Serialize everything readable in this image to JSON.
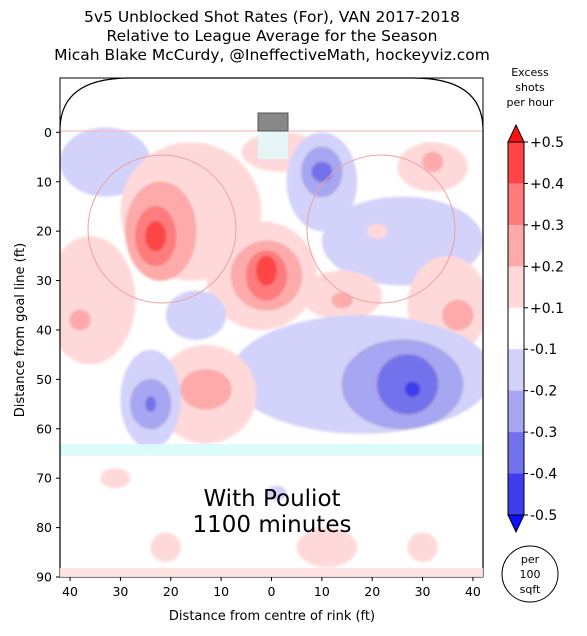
{
  "title": {
    "line1": "5v5 Unblocked Shot Rates (For), VAN 2017-2018",
    "line2": "Relative to League Average for the Season",
    "line3": "Micah Blake McCurdy, @IneffectiveMath, hockeyviz.com"
  },
  "annotation": {
    "line1": "With Pouliot",
    "line2": "1100 minutes"
  },
  "unit_badge": {
    "line1": "per",
    "line2": "100",
    "line3": "sqft"
  },
  "colorbar": {
    "title": [
      "Excess",
      "shots",
      "per hour"
    ],
    "tick_labels": [
      "+0.5",
      "+0.4",
      "+0.3",
      "+0.2",
      "+0.1",
      "-0.1",
      "-0.2",
      "-0.3",
      "-0.4",
      "-0.5"
    ],
    "levels": [
      0.5,
      0.4,
      0.3,
      0.2,
      0.1,
      -0.1,
      -0.2,
      -0.3,
      -0.4,
      -0.5
    ],
    "colors": {
      "pos1": "#ffd9d9",
      "pos2": "#ffaaaa",
      "pos3": "#ff7b7b",
      "pos4": "#ff4545",
      "pos5": "#ff1111",
      "neg1": "#d2d2fa",
      "neg2": "#a6a6f2",
      "neg3": "#7272ec",
      "neg4": "#3e3eee",
      "neg5": "#1010ff"
    }
  },
  "chart_data": {
    "type": "heatmap",
    "xlabel": "Distance from centre of rink (ft)",
    "ylabel": "Distance from goal line (ft)",
    "xlim": [
      42,
      -42
    ],
    "ylim": [
      90,
      -11
    ],
    "x_ticks": [
      40,
      30,
      20,
      10,
      0,
      10,
      20,
      30,
      40
    ],
    "x_tick_values": [
      40,
      30,
      20,
      10,
      0,
      -10,
      -20,
      -30,
      -40
    ],
    "y_ticks": [
      0,
      10,
      20,
      30,
      40,
      50,
      60,
      70,
      80,
      90
    ],
    "regions": [
      {
        "sign": "neg",
        "level": 1,
        "cx": 33,
        "cy": 6,
        "rx": 9,
        "ry": 7
      },
      {
        "sign": "pos",
        "level": 1,
        "cx": 16,
        "cy": 16,
        "rx": 14,
        "ry": 14
      },
      {
        "sign": "pos",
        "level": 2,
        "cx": 22,
        "cy": 20,
        "rx": 7,
        "ry": 10
      },
      {
        "sign": "pos",
        "level": 3,
        "cx": 23,
        "cy": 21,
        "rx": 4,
        "ry": 6
      },
      {
        "sign": "pos",
        "level": 4,
        "cx": 23,
        "cy": 21,
        "rx": 2,
        "ry": 3
      },
      {
        "sign": "pos",
        "level": 1,
        "cx": -2,
        "cy": 4,
        "rx": 8,
        "ry": 4
      },
      {
        "sign": "neg",
        "level": 1,
        "cx": -10,
        "cy": 10,
        "rx": 7,
        "ry": 10
      },
      {
        "sign": "neg",
        "level": 2,
        "cx": -10,
        "cy": 8,
        "rx": 4,
        "ry": 5
      },
      {
        "sign": "neg",
        "level": 3,
        "cx": -10,
        "cy": 8,
        "rx": 2,
        "ry": 2
      },
      {
        "sign": "pos",
        "level": 1,
        "cx": -32,
        "cy": 7,
        "rx": 7,
        "ry": 5
      },
      {
        "sign": "pos",
        "level": 2,
        "cx": -32,
        "cy": 6,
        "rx": 2,
        "ry": 2
      },
      {
        "sign": "neg",
        "level": 1,
        "cx": -26,
        "cy": 22,
        "rx": 16,
        "ry": 9
      },
      {
        "sign": "pos",
        "level": 1,
        "cx": -21,
        "cy": 20,
        "rx": 2,
        "ry": 1.5
      },
      {
        "sign": "pos",
        "level": 1,
        "cx": 2,
        "cy": 29,
        "rx": 11,
        "ry": 11
      },
      {
        "sign": "pos",
        "level": 2,
        "cx": 1,
        "cy": 29,
        "rx": 7,
        "ry": 7
      },
      {
        "sign": "pos",
        "level": 3,
        "cx": 1,
        "cy": 29,
        "rx": 4,
        "ry": 5
      },
      {
        "sign": "pos",
        "level": 4,
        "cx": 1,
        "cy": 28,
        "rx": 2,
        "ry": 3
      },
      {
        "sign": "pos",
        "level": 1,
        "cx": -14,
        "cy": 33,
        "rx": 8,
        "ry": 5
      },
      {
        "sign": "pos",
        "level": 2,
        "cx": -14,
        "cy": 34,
        "rx": 2,
        "ry": 1.5
      },
      {
        "sign": "pos",
        "level": 1,
        "cx": -35,
        "cy": 35,
        "rx": 8,
        "ry": 10
      },
      {
        "sign": "pos",
        "level": 2,
        "cx": -37,
        "cy": 37,
        "rx": 3,
        "ry": 3
      },
      {
        "sign": "pos",
        "level": 1,
        "cx": 36,
        "cy": 34,
        "rx": 9,
        "ry": 13
      },
      {
        "sign": "pos",
        "level": 2,
        "cx": 38,
        "cy": 38,
        "rx": 2,
        "ry": 2
      },
      {
        "sign": "neg",
        "level": 1,
        "cx": 15,
        "cy": 37,
        "rx": 6,
        "ry": 5
      },
      {
        "sign": "neg",
        "level": 1,
        "cx": -18,
        "cy": 49,
        "rx": 26,
        "ry": 12
      },
      {
        "sign": "neg",
        "level": 2,
        "cx": -26,
        "cy": 51,
        "rx": 12,
        "ry": 9
      },
      {
        "sign": "neg",
        "level": 3,
        "cx": -27,
        "cy": 51,
        "rx": 6,
        "ry": 6
      },
      {
        "sign": "neg",
        "level": 4,
        "cx": -28,
        "cy": 52,
        "rx": 1.5,
        "ry": 1.5
      },
      {
        "sign": "pos",
        "level": 1,
        "cx": 13,
        "cy": 53,
        "rx": 10,
        "ry": 10
      },
      {
        "sign": "pos",
        "level": 2,
        "cx": 13,
        "cy": 52,
        "rx": 5,
        "ry": 4
      },
      {
        "sign": "neg",
        "level": 1,
        "cx": 24,
        "cy": 54,
        "rx": 6,
        "ry": 10
      },
      {
        "sign": "neg",
        "level": 2,
        "cx": 24,
        "cy": 55,
        "rx": 4,
        "ry": 5
      },
      {
        "sign": "neg",
        "level": 3,
        "cx": 24,
        "cy": 55,
        "rx": 1,
        "ry": 1.5
      },
      {
        "sign": "pos",
        "level": 1,
        "cx": 31,
        "cy": 70,
        "rx": 3,
        "ry": 2
      },
      {
        "sign": "neg",
        "level": 1,
        "cx": -1,
        "cy": 73,
        "rx": 2,
        "ry": 1.5
      },
      {
        "sign": "pos",
        "level": 1,
        "cx": -11,
        "cy": 84,
        "rx": 6,
        "ry": 4
      },
      {
        "sign": "pos",
        "level": 1,
        "cx": 21,
        "cy": 84,
        "rx": 3,
        "ry": 3
      },
      {
        "sign": "pos",
        "level": 1,
        "cx": -30,
        "cy": 84,
        "rx": 3,
        "ry": 3
      }
    ]
  }
}
